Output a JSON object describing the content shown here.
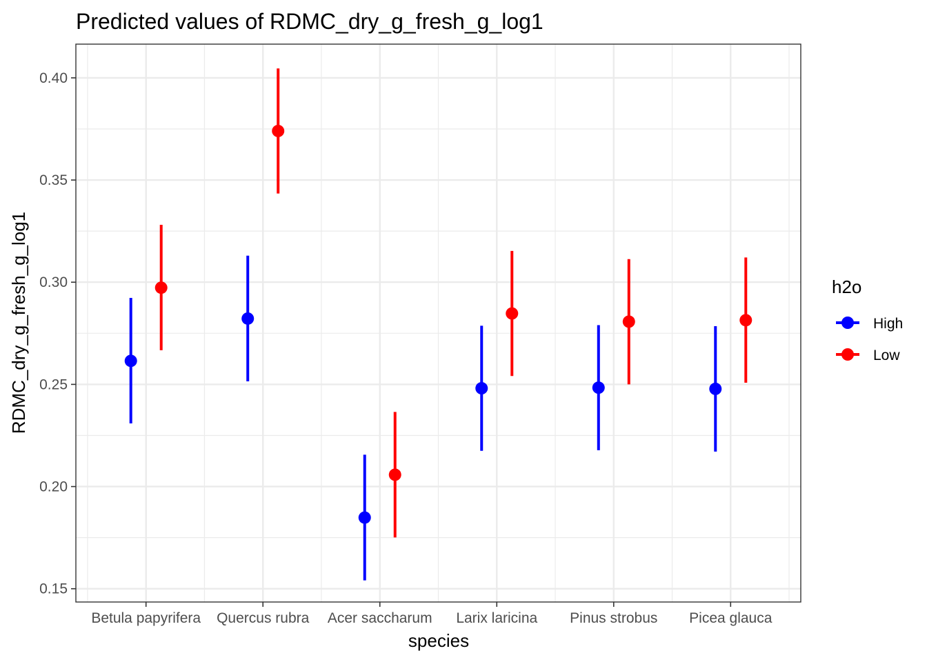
{
  "chart_data": {
    "type": "scatter",
    "title": "Predicted values of RDMC_dry_g_fresh_g_log1",
    "xlabel": "species",
    "ylabel": "RDMC_dry_g_fresh_g_log1",
    "categories": [
      "Betula papyrifera",
      "Quercus rubra",
      "Acer saccharum",
      "Larix laricina",
      "Pinus strobus",
      "Picea glauca"
    ],
    "yticks": [
      "0.15",
      "0.20",
      "0.25",
      "0.30",
      "0.35",
      "0.40"
    ],
    "ytick_values": [
      0.15,
      0.2,
      0.25,
      0.3,
      0.35,
      0.4
    ],
    "ylim": [
      0.1435,
      0.4165
    ],
    "grid": true,
    "legend": {
      "title": "h2o",
      "position": "right"
    },
    "series": [
      {
        "name": "High",
        "color": "#0000ff",
        "values": [
          0.2615,
          0.2822,
          0.1848,
          0.2481,
          0.2484,
          0.2478
        ],
        "lower": [
          0.2309,
          0.2515,
          0.1541,
          0.2175,
          0.2178,
          0.2171
        ],
        "upper": [
          0.2923,
          0.313,
          0.2156,
          0.2787,
          0.279,
          0.2785
        ]
      },
      {
        "name": "Low",
        "color": "#ff0000",
        "values": [
          0.2973,
          0.374,
          0.2058,
          0.2847,
          0.2807,
          0.2814
        ],
        "lower": [
          0.2667,
          0.3434,
          0.1751,
          0.2541,
          0.25,
          0.2508
        ],
        "upper": [
          0.3281,
          0.4046,
          0.2365,
          0.3153,
          0.3113,
          0.3121
        ]
      }
    ]
  }
}
